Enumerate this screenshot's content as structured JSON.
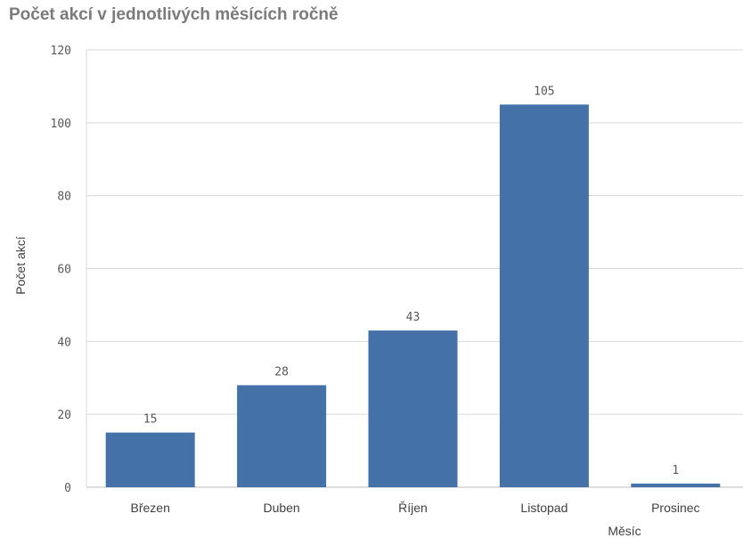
{
  "chart_data": {
    "type": "bar",
    "title": "Počet akcí v jednotlivých měsících ročně",
    "xlabel": "Měsíc",
    "ylabel": "Počet akcí",
    "categories": [
      "Březen",
      "Duben",
      "Říjen",
      "Listopad",
      "Prosinec"
    ],
    "values": [
      15,
      28,
      43,
      105,
      1
    ],
    "ylim": [
      0,
      120
    ],
    "yticks": [
      0,
      20,
      40,
      60,
      80,
      100,
      120
    ],
    "grid": true,
    "bar_color": "#4472a8",
    "grid_color": "#d9d9d9"
  }
}
